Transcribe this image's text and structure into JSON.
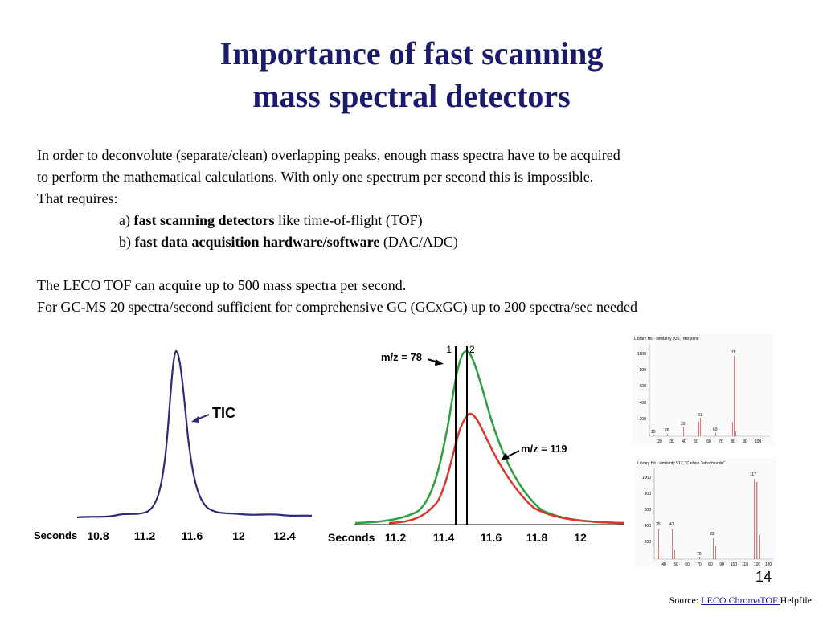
{
  "slide": {
    "title_line1": "Importance of fast scanning",
    "title_line2": "mass spectral detectors",
    "para1_line1": "In order to deconvolute (separate/clean) overlapping peaks, enough mass spectra have to be acquired",
    "para1_line2": "to perform the mathematical calculations. With only one spectrum per second this is impossible.",
    "para1_line3": "That requires:",
    "item_a_prefix": "a) ",
    "item_a_bold": "fast scanning detectors",
    "item_a_rest": " like time-of-flight (TOF)",
    "item_b_prefix": "b) ",
    "item_b_bold": "fast data acquisition hardware/software",
    "item_b_rest": " (DAC/ADC)",
    "para2_line1": "The LECO TOF can acquire up to 500 mass spectra per second.",
    "para2_line2": "For GC-MS 20 spectra/second sufficient for comprehensive GC (GCxGC) up to 200 spectra/sec needed",
    "page_number": "14",
    "source_prefix": "Source: ",
    "source_link": "LECO ChromaTOF ",
    "source_suffix": "Helpfile"
  },
  "figures": {
    "tic": {
      "axis_label": "Seconds",
      "ticks": [
        "10.8",
        "11.2",
        "11.6",
        "12",
        "12.4"
      ],
      "annotation": "TIC",
      "color": "#2b2b7a"
    },
    "overlap": {
      "axis_label": "Seconds",
      "ticks": [
        "11.2",
        "11.4",
        "11.6",
        "11.8",
        "12"
      ],
      "label_78": "m/z = 78",
      "label_119": "m/z = 119",
      "marker_1": "1",
      "marker_2": "2",
      "color_78": "#2aa040",
      "color_119": "#d8392a"
    },
    "spectrum1": {
      "header": "Library Hit - similarity 920, \"Benzene\"",
      "yticks": [
        "1000",
        "800",
        "600",
        "400",
        "200"
      ],
      "xticks": [
        "20",
        "30",
        "40",
        "50",
        "60",
        "70",
        "80",
        "90",
        "100"
      ],
      "labels": [
        "15",
        "26",
        "39",
        "51",
        "63",
        "78"
      ],
      "color": "#d97a7a"
    },
    "spectrum2": {
      "header": "Library Hit - similarity 917, \"Carbon Tetrachloride\"",
      "yticks": [
        "1000",
        "800",
        "600",
        "400",
        "200"
      ],
      "xticks": [
        "40",
        "50",
        "60",
        "70",
        "80",
        "90",
        "100",
        "110",
        "120",
        "130"
      ],
      "labels": [
        "35",
        "47",
        "70",
        "82",
        "117"
      ],
      "color": "#d97a7a"
    }
  }
}
